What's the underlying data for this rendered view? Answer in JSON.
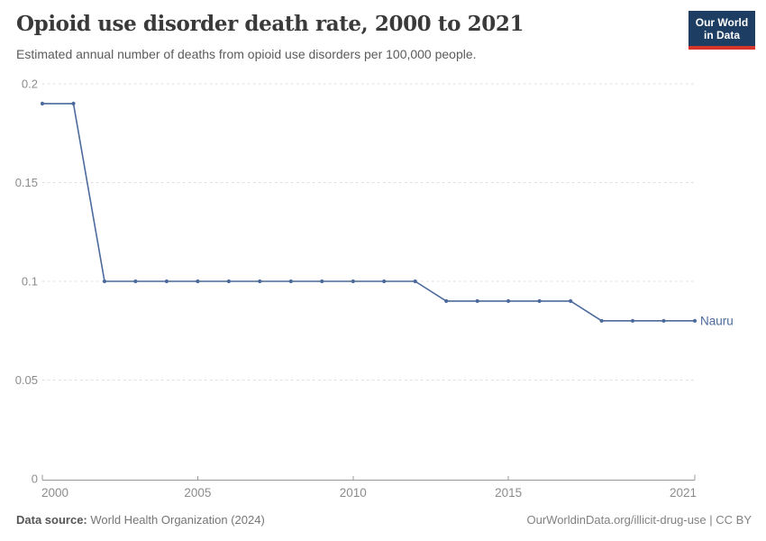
{
  "header": {
    "title": "Opioid use disorder death rate, 2000 to 2021",
    "subtitle": "Estimated annual number of deaths from opioid use disorders per 100,000 people."
  },
  "logo": {
    "line1": "Our World",
    "line2": "in Data"
  },
  "footer": {
    "source_label": "Data source:",
    "source_value": " World Health Organization (2024)",
    "credit": "OurWorldinData.org/illicit-drug-use | CC BY"
  },
  "colors": {
    "series_line": "#4c6a9c",
    "logo_background": "#1d3d63",
    "logo_bar": "#d8352a",
    "gridline": "#dcdcdc",
    "axis": "#9a9a9a",
    "tick_label": "#8c8c8c"
  },
  "chart_data": {
    "type": "line",
    "title": "Opioid use disorder death rate, 2000 to 2021",
    "subtitle": "Estimated annual number of deaths from opioid use disorders per 100,000 people.",
    "xlabel": "",
    "ylabel": "",
    "x": [
      2000,
      2001,
      2002,
      2003,
      2004,
      2005,
      2006,
      2007,
      2008,
      2009,
      2010,
      2011,
      2012,
      2013,
      2014,
      2015,
      2016,
      2017,
      2018,
      2019,
      2020,
      2021
    ],
    "series": [
      {
        "name": "Nauru",
        "color": "#4c6a9c",
        "values": [
          0.19,
          0.19,
          0.1,
          0.1,
          0.1,
          0.1,
          0.1,
          0.1,
          0.1,
          0.1,
          0.1,
          0.1,
          0.1,
          0.09,
          0.09,
          0.09,
          0.09,
          0.09,
          0.08,
          0.08,
          0.08,
          0.08
        ]
      }
    ],
    "xlim": [
      2000,
      2021
    ],
    "ylim": [
      0,
      0.2
    ],
    "y_ticks": [
      0,
      0.05,
      0.1,
      0.15,
      0.2
    ],
    "y_tick_labels": [
      "0",
      "0.05",
      "0.1",
      "0.15",
      "0.2"
    ],
    "x_ticks": [
      2000,
      2005,
      2010,
      2015,
      2021
    ],
    "x_tick_labels": [
      "2000",
      "2005",
      "2010",
      "2015",
      "2021"
    ],
    "grid": "horizontal-dashed",
    "legend": "end-of-line-label"
  }
}
